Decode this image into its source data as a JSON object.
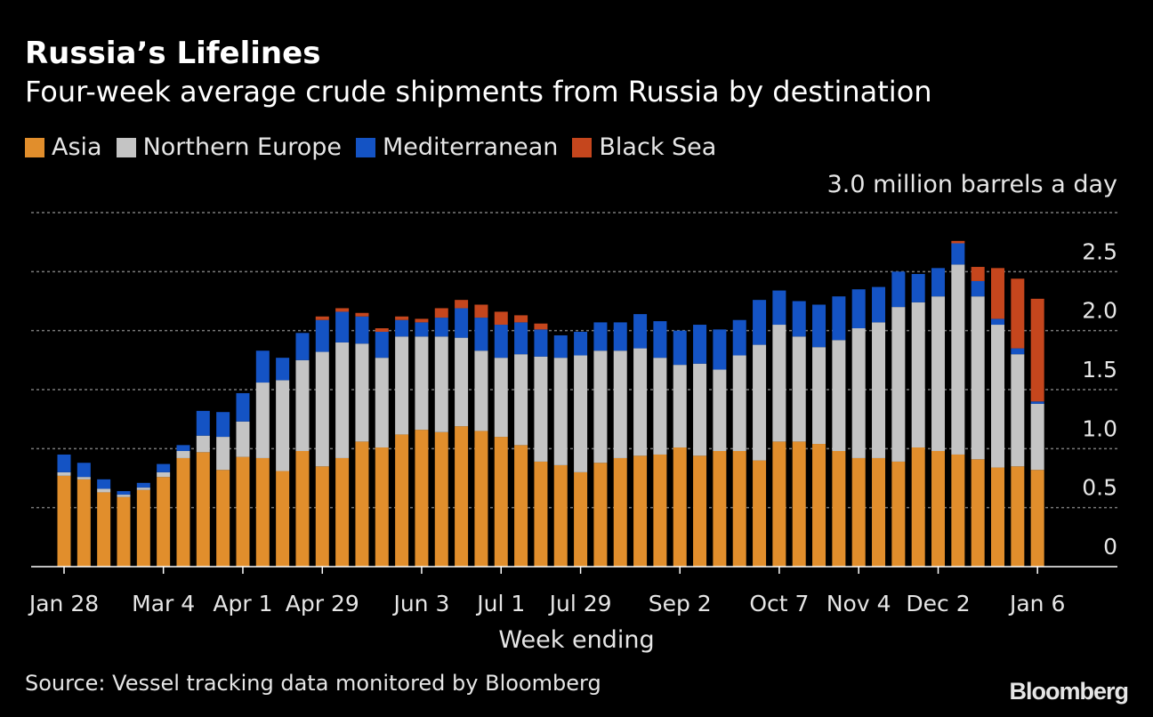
{
  "chart_data": {
    "type": "bar",
    "stacked": true,
    "title": "Russia’s Lifelines",
    "subtitle": "Four-week average crude shipments from Russia by destination",
    "unit_label": "3.0 million barrels a day",
    "xlabel": "Week ending",
    "ylabel": "",
    "ylim": [
      0,
      3.0
    ],
    "yticks": [
      0,
      0.5,
      1.0,
      1.5,
      2.0,
      2.5
    ],
    "ytick_labels": [
      "0",
      "0.5",
      "1.0",
      "1.5",
      "2.0",
      "2.5"
    ],
    "gridlines": [
      0.5,
      1.0,
      1.5,
      2.0,
      2.5,
      3.0
    ],
    "xtick_labels": [
      {
        "index": 0,
        "label": "Jan 28"
      },
      {
        "index": 5,
        "label": "Mar 4"
      },
      {
        "index": 9,
        "label": "Apr 1"
      },
      {
        "index": 13,
        "label": "Apr 29"
      },
      {
        "index": 18,
        "label": "Jun 3"
      },
      {
        "index": 22,
        "label": "Jul 1"
      },
      {
        "index": 26,
        "label": "Jul 29"
      },
      {
        "index": 31,
        "label": "Sep 2"
      },
      {
        "index": 36,
        "label": "Oct 7"
      },
      {
        "index": 40,
        "label": "Nov 4"
      },
      {
        "index": 44,
        "label": "Dec 2"
      },
      {
        "index": 49,
        "label": "Jan 6"
      }
    ],
    "series": [
      {
        "name": "Asia",
        "color": "#e18e2c",
        "values": [
          0.77,
          0.74,
          0.63,
          0.59,
          0.65,
          0.76,
          0.92,
          0.97,
          0.82,
          0.93,
          0.92,
          0.81,
          0.98,
          0.85,
          0.92,
          1.06,
          1.01,
          1.12,
          1.16,
          1.14,
          1.19,
          1.15,
          1.1,
          1.03,
          0.89,
          0.86,
          0.8,
          0.88,
          0.92,
          0.94,
          0.95,
          1.01,
          0.94,
          0.98,
          0.98,
          0.9,
          1.06,
          1.06,
          1.04,
          0.98,
          0.92,
          0.92,
          0.89,
          1.01,
          0.98,
          0.95,
          0.91,
          0.84,
          0.85,
          0.82
        ]
      },
      {
        "name": "Northern Europe",
        "color": "#c4c4c4",
        "values": [
          0.03,
          0.02,
          0.03,
          0.02,
          0.02,
          0.04,
          0.06,
          0.14,
          0.28,
          0.3,
          0.64,
          0.77,
          0.77,
          0.97,
          0.98,
          0.83,
          0.76,
          0.83,
          0.79,
          0.81,
          0.75,
          0.68,
          0.67,
          0.77,
          0.89,
          0.91,
          0.99,
          0.95,
          0.91,
          0.91,
          0.82,
          0.7,
          0.78,
          0.69,
          0.81,
          0.98,
          0.99,
          0.89,
          0.82,
          0.94,
          1.1,
          1.15,
          1.31,
          1.23,
          1.31,
          1.61,
          1.38,
          1.21,
          0.95,
          0.56
        ]
      },
      {
        "name": "Mediterranean",
        "color": "#1453c4",
        "values": [
          0.15,
          0.12,
          0.08,
          0.03,
          0.04,
          0.07,
          0.05,
          0.21,
          0.21,
          0.24,
          0.27,
          0.19,
          0.23,
          0.27,
          0.26,
          0.23,
          0.22,
          0.14,
          0.12,
          0.16,
          0.25,
          0.28,
          0.28,
          0.27,
          0.23,
          0.19,
          0.2,
          0.24,
          0.24,
          0.29,
          0.31,
          0.29,
          0.33,
          0.34,
          0.3,
          0.38,
          0.29,
          0.3,
          0.36,
          0.37,
          0.33,
          0.3,
          0.3,
          0.24,
          0.24,
          0.18,
          0.13,
          0.05,
          0.05,
          0.02
        ]
      },
      {
        "name": "Black Sea",
        "color": "#c5461d",
        "values": [
          0,
          0,
          0,
          0,
          0,
          0,
          0,
          0,
          0,
          0,
          0,
          0,
          0,
          0.03,
          0.03,
          0.03,
          0.03,
          0.03,
          0.03,
          0.08,
          0.07,
          0.11,
          0.11,
          0.06,
          0.05,
          0,
          0,
          0,
          0,
          0,
          0,
          0,
          0,
          0,
          0,
          0,
          0,
          0,
          0,
          0,
          0,
          0,
          0,
          0,
          0,
          0.02,
          0.12,
          0.43,
          0.59,
          0.87
        ]
      }
    ]
  },
  "source": "Source: Vessel tracking data monitored by Bloomberg",
  "brand": "Bloomberg"
}
